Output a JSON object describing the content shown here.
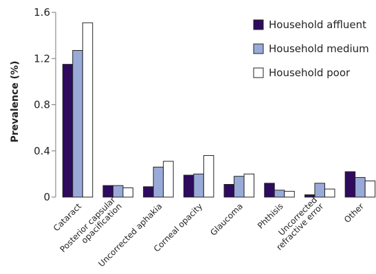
{
  "chart_data": {
    "type": "bar",
    "title": "",
    "xlabel": "",
    "ylabel": "Prevalence (%)",
    "ylim": [
      0,
      1.6
    ],
    "yticks": [
      0,
      0.4,
      0.8,
      1.2,
      1.6
    ],
    "ytick_labels": [
      "0",
      "0.4",
      "0.8",
      "1.2",
      "1.6"
    ],
    "grid": false,
    "legend_position": "top-right",
    "categories": [
      [
        "Cataract"
      ],
      [
        "Posterior capsular",
        "opacification"
      ],
      [
        "Uncorrected aphakia"
      ],
      [
        "Corneal opacity"
      ],
      [
        "Glaucoma"
      ],
      [
        "Phthisis"
      ],
      [
        "Uncorrected",
        "refractive error"
      ],
      [
        "Other"
      ]
    ],
    "series": [
      {
        "name": "Household affluent",
        "color": "#2e0b5e",
        "values": [
          1.15,
          0.1,
          0.09,
          0.19,
          0.11,
          0.12,
          0.02,
          0.22
        ]
      },
      {
        "name": "Household medium",
        "color": "#9aaad8",
        "values": [
          1.27,
          0.1,
          0.26,
          0.2,
          0.18,
          0.06,
          0.12,
          0.17
        ]
      },
      {
        "name": "Household poor",
        "color": "#ffffff",
        "values": [
          1.51,
          0.08,
          0.31,
          0.36,
          0.2,
          0.05,
          0.07,
          0.14
        ]
      }
    ]
  }
}
